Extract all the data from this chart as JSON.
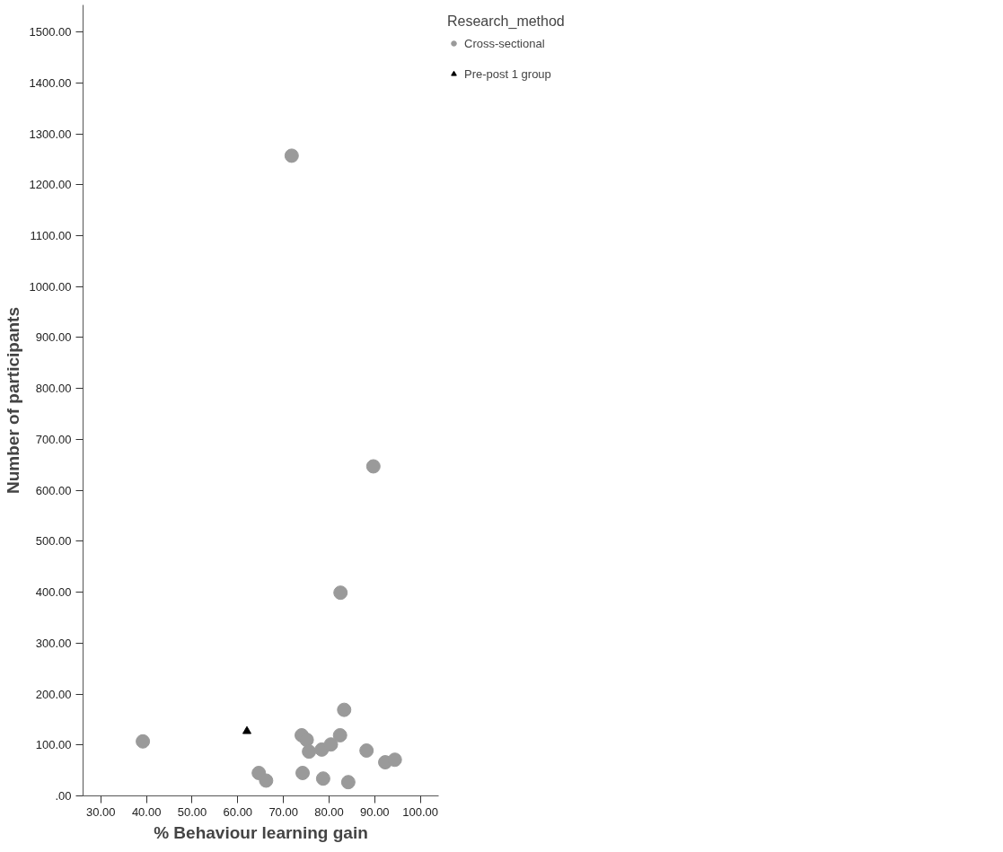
{
  "chart_data": {
    "type": "scatter",
    "xlabel": "% Behaviour learning gain",
    "ylabel": "Number of participants",
    "legend_title": "Research_method",
    "xlim": [
      26.1,
      104
    ],
    "ylim": [
      0,
      1553
    ],
    "xticks": [
      {
        "value": 30,
        "label": "30.00"
      },
      {
        "value": 40,
        "label": "40.00"
      },
      {
        "value": 50,
        "label": "50.00"
      },
      {
        "value": 60,
        "label": "60.00"
      },
      {
        "value": 70,
        "label": "70.00"
      },
      {
        "value": 80,
        "label": "80.00"
      },
      {
        "value": 90,
        "label": "90.00"
      },
      {
        "value": 100,
        "label": "100.00"
      }
    ],
    "yticks": [
      {
        "value": 0,
        "label": ".00"
      },
      {
        "value": 100,
        "label": "100.00"
      },
      {
        "value": 200,
        "label": "200.00"
      },
      {
        "value": 300,
        "label": "300.00"
      },
      {
        "value": 400,
        "label": "400.00"
      },
      {
        "value": 500,
        "label": "500.00"
      },
      {
        "value": 600,
        "label": "600.00"
      },
      {
        "value": 700,
        "label": "700.00"
      },
      {
        "value": 800,
        "label": "800.00"
      },
      {
        "value": 900,
        "label": "900.00"
      },
      {
        "value": 1000,
        "label": "1000.00"
      },
      {
        "value": 1100,
        "label": "1100.00"
      },
      {
        "value": 1200,
        "label": "1200.00"
      },
      {
        "value": 1300,
        "label": "1300.00"
      },
      {
        "value": 1400,
        "label": "1400.00"
      },
      {
        "value": 1500,
        "label": "1500.00"
      }
    ],
    "grid": false,
    "legend": "top right",
    "series": [
      {
        "name": "Cross-sectional",
        "color": "#9a9a9a",
        "marker": "circle",
        "x": [
          39.2,
          64.6,
          66.2,
          74.0,
          75.1,
          75.6,
          74.2,
          78.4,
          78.7,
          80.4,
          82.4,
          83.3,
          84.2,
          88.2,
          92.3,
          94.4,
          82.5,
          89.7,
          71.8
        ],
        "values": [
          107,
          45,
          30,
          119,
          110,
          87,
          45,
          91,
          34,
          101,
          119,
          169,
          27,
          89,
          66,
          71,
          399,
          647,
          1257
        ]
      },
      {
        "name": "Pre-post 1 group",
        "color": "#000000",
        "marker": "triangle",
        "x": [
          62.0
        ],
        "values": [
          127
        ]
      }
    ]
  }
}
